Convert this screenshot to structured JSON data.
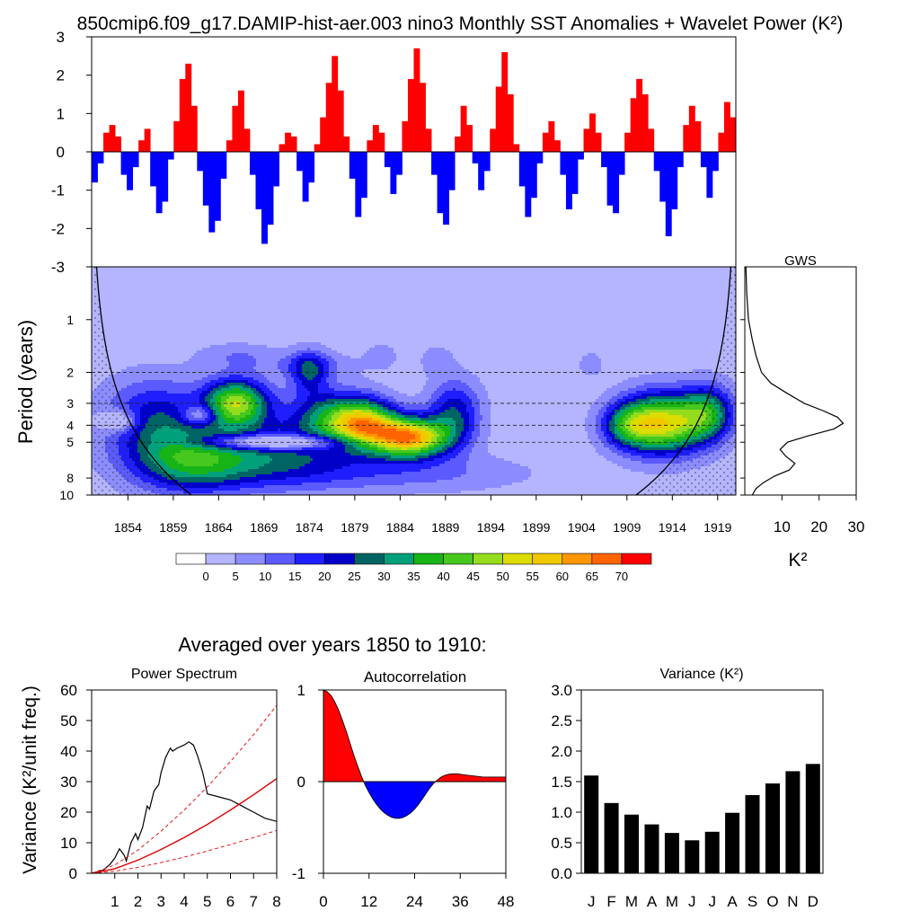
{
  "title": "850cmip6.f09_g17.DAMIP-hist-aer.003 nino3 Monthly SST Anomalies + Wavelet Power (K²)",
  "subtitle": "Averaged over years 1850 to 1910:",
  "colors": {
    "positive": "#ff0000",
    "negative": "#0000ff",
    "contour_levels": [
      "#ffffff",
      "#b4b4ff",
      "#8c8cff",
      "#5a5aff",
      "#1e1eff",
      "#0000c8",
      "#006464",
      "#00a07a",
      "#17b417",
      "#46c81e",
      "#96dc1e",
      "#dcdc00",
      "#f0c800",
      "#ff9600",
      "#ff6400",
      "#ff0000"
    ]
  },
  "chart_data": [
    {
      "id": "sst-anomalies",
      "type": "bar",
      "ylim": [
        -3,
        3
      ],
      "yticks": [
        "3",
        "2",
        "1",
        "0",
        "-1",
        "-2",
        "-3"
      ],
      "x_range": [
        1850,
        1921
      ],
      "values_note_free": true,
      "series": [
        {
          "values": [
            -0.8,
            -0.3,
            0.5,
            0.7,
            0.4,
            -0.6,
            -1.0,
            -0.4,
            0.3,
            0.6,
            -0.9,
            -1.6,
            -1.3,
            -0.2,
            0.8,
            1.9,
            2.3,
            1.2,
            -0.5,
            -1.4,
            -2.1,
            -1.8,
            -0.7,
            0.3,
            1.2,
            1.6,
            0.6,
            -0.6,
            -1.5,
            -2.4,
            -1.9,
            -0.9,
            0.2,
            0.5,
            0.4,
            -0.5,
            -1.3,
            -0.8,
            0.2,
            0.9,
            1.8,
            2.5,
            1.6,
            0.4,
            -0.7,
            -1.7,
            -1.2,
            0.3,
            0.7,
            0.5,
            -0.4,
            -1.1,
            -0.6,
            0.8,
            1.9,
            2.7,
            1.8,
            0.6,
            -0.6,
            -1.6,
            -1.9,
            -1.0,
            0.4,
            1.2,
            0.7,
            -0.3,
            -1.0,
            -0.5,
            0.6,
            1.7,
            2.6,
            1.5,
            0.2,
            -0.9,
            -1.7,
            -1.2,
            -0.3,
            0.5,
            0.8,
            0.3,
            -0.6,
            -1.5,
            -1.1,
            -0.2,
            0.6,
            1.0,
            0.5,
            -0.4,
            -1.4,
            -1.6,
            -0.6,
            0.5,
            1.4,
            1.9,
            1.5,
            0.6,
            -0.5,
            -1.3,
            -2.2,
            -1.5,
            -0.4,
            0.7,
            1.2,
            0.8,
            -0.4,
            -1.2,
            -0.5,
            0.5,
            1.3,
            0.9
          ]
        }
      ]
    },
    {
      "id": "wavelet-power",
      "type": "heatmap",
      "ylabel": "Period (years)",
      "x_range": [
        1850,
        1921
      ],
      "x_ticks": [
        1854,
        1859,
        1864,
        1869,
        1874,
        1879,
        1884,
        1889,
        1894,
        1899,
        1904,
        1909,
        1914,
        1919
      ],
      "y_range_log": [
        0.5,
        10
      ],
      "y_ticks": [
        1,
        2,
        3,
        4,
        5,
        8,
        10
      ],
      "levels": [
        0,
        5,
        10,
        15,
        20,
        25,
        30,
        35,
        40,
        45,
        50,
        55,
        60,
        65,
        70
      ],
      "dashed_periods": [
        2,
        3,
        4,
        5
      ],
      "blobs": [
        {
          "t": 1857,
          "p": 3.8,
          "st": 4.0,
          "sp": 0.38,
          "a": 22
        },
        {
          "t": 1861,
          "p": 6.5,
          "st": 4.5,
          "sp": 0.28,
          "a": 28
        },
        {
          "t": 1866,
          "p": 3.0,
          "st": 2.5,
          "sp": 0.22,
          "a": 45
        },
        {
          "t": 1870,
          "p": 5.8,
          "st": 6.0,
          "sp": 0.3,
          "a": 22
        },
        {
          "t": 1874,
          "p": 2.0,
          "st": 1.5,
          "sp": 0.2,
          "a": 20
        },
        {
          "t": 1876,
          "p": 3.6,
          "st": 3.0,
          "sp": 0.25,
          "a": 24
        },
        {
          "t": 1880,
          "p": 3.9,
          "st": 2.5,
          "sp": 0.22,
          "a": 45
        },
        {
          "t": 1885,
          "p": 4.7,
          "st": 3.0,
          "sp": 0.18,
          "a": 60
        },
        {
          "t": 1890,
          "p": 3.4,
          "st": 2.0,
          "sp": 0.3,
          "a": 22
        },
        {
          "t": 1883,
          "p": 7.5,
          "st": 10.0,
          "sp": 0.18,
          "a": 10
        },
        {
          "t": 1913,
          "p": 3.9,
          "st": 3.2,
          "sp": 0.28,
          "a": 50
        },
        {
          "t": 1909,
          "p": 4.0,
          "st": 2.0,
          "sp": 0.2,
          "a": 22
        },
        {
          "t": 1918,
          "p": 3.4,
          "st": 2.0,
          "sp": 0.25,
          "a": 28
        },
        {
          "t": 1866,
          "p": 1.6,
          "st": 3.0,
          "sp": 0.12,
          "a": 7
        },
        {
          "t": 1874,
          "p": 1.8,
          "st": 4.0,
          "sp": 0.12,
          "a": 7
        },
        {
          "t": 1882,
          "p": 1.6,
          "st": 1.2,
          "sp": 0.12,
          "a": 6
        },
        {
          "t": 1888,
          "p": 1.7,
          "st": 1.2,
          "sp": 0.12,
          "a": 7
        },
        {
          "t": 1905,
          "p": 1.8,
          "st": 1.0,
          "sp": 0.12,
          "a": 6
        }
      ],
      "holes": [
        {
          "t": 1870,
          "p": 5.0,
          "st": 5.5,
          "sp": 0.07,
          "a": 30
        },
        {
          "t": 1853,
          "p": 3.8,
          "st": 1.5,
          "sp": 0.1,
          "a": 18
        },
        {
          "t": 1862,
          "p": 3.5,
          "st": 1.3,
          "sp": 0.09,
          "a": 18
        }
      ]
    },
    {
      "id": "gws",
      "type": "line",
      "title": "GWS",
      "xlabel": "K²",
      "xlim": [
        0,
        30
      ],
      "xticks": [
        "10",
        "20",
        "30"
      ],
      "period": [
        0.5,
        0.7,
        1,
        1.3,
        1.6,
        2,
        2.3,
        2.6,
        3,
        3.3,
        3.6,
        3.9,
        4.2,
        4.6,
        5,
        5.5,
        6,
        6.6,
        7.2,
        7.8,
        8.5,
        9.2,
        10
      ],
      "power": [
        0.3,
        0.5,
        1.0,
        2.0,
        3.0,
        4.5,
        7.0,
        11.0,
        16.0,
        21.0,
        25.0,
        26.5,
        24.0,
        17.0,
        11.5,
        9.5,
        11.0,
        13.5,
        12.0,
        8.0,
        5.0,
        3.0,
        2.0
      ]
    },
    {
      "id": "colorbar",
      "type": "table",
      "labels": [
        "0",
        "5",
        "10",
        "15",
        "20",
        "25",
        "30",
        "35",
        "40",
        "45",
        "50",
        "55",
        "60",
        "65",
        "70"
      ]
    },
    {
      "id": "power-spectrum",
      "type": "line",
      "title": "Power Spectrum",
      "ylabel": "Variance (K²/unit freq.)",
      "xlim": [
        0,
        8
      ],
      "ylim": [
        0,
        60
      ],
      "xticks": [
        "1",
        "2",
        "3",
        "4",
        "5",
        "6",
        "7",
        "8"
      ],
      "yticks": [
        "0",
        "10",
        "20",
        "30",
        "40",
        "50",
        "60"
      ],
      "series": [
        {
          "x": [
            0,
            0.5,
            0.8,
            1.0,
            1.2,
            1.4,
            1.5,
            1.7,
            1.9,
            2.0,
            2.2,
            2.4,
            2.5,
            2.7,
            2.9,
            3.0,
            3.2,
            3.4,
            3.5,
            3.7,
            4.0,
            4.2,
            4.4,
            4.6,
            4.8,
            5.0,
            5.5,
            6.0,
            6.5,
            7.0,
            7.5,
            8.0
          ],
          "y": [
            0,
            1,
            3,
            5,
            8,
            6,
            4,
            10,
            13,
            11,
            15,
            22,
            21,
            27,
            29,
            33,
            38,
            41,
            40,
            41,
            42,
            43,
            42,
            38,
            33,
            26,
            25,
            24,
            22,
            20,
            18,
            17
          ]
        },
        {
          "x": [
            0,
            1,
            2,
            3,
            4,
            5,
            6,
            7,
            8
          ],
          "y": [
            0,
            1.5,
            4.3,
            7.8,
            11.7,
            16,
            20.7,
            25.7,
            31
          ]
        },
        {
          "x": [
            0,
            1,
            2,
            3,
            4,
            5,
            6,
            7,
            8
          ],
          "y": [
            0,
            2.7,
            7.6,
            13.8,
            20.7,
            28.3,
            36.6,
            45.4,
            55
          ]
        },
        {
          "x": [
            0,
            1,
            2,
            3,
            4,
            5,
            6,
            7,
            8
          ],
          "y": [
            0,
            0.7,
            1.9,
            3.5,
            5.3,
            7.3,
            9.4,
            11.7,
            14
          ]
        }
      ]
    },
    {
      "id": "autocorrelation",
      "type": "area",
      "title": "Autocorrelation",
      "xlim": [
        0,
        48
      ],
      "ylim": [
        -1,
        1
      ],
      "xticks": [
        "0",
        "12",
        "24",
        "36",
        "48"
      ],
      "yticks": [
        "1",
        "0",
        "-1"
      ],
      "x": [
        0,
        1,
        2,
        3,
        4,
        5,
        6,
        7,
        8,
        9,
        10,
        11,
        12,
        13,
        14,
        15,
        16,
        17,
        18,
        19,
        20,
        21,
        22,
        23,
        24,
        25,
        26,
        27,
        28,
        29,
        30,
        31,
        32,
        33,
        34,
        35,
        36,
        37,
        38,
        39,
        40,
        41,
        42,
        43,
        44,
        45,
        46,
        47,
        48
      ],
      "y": [
        1.0,
        0.98,
        0.94,
        0.87,
        0.78,
        0.67,
        0.55,
        0.42,
        0.29,
        0.17,
        0.06,
        -0.04,
        -0.12,
        -0.19,
        -0.25,
        -0.3,
        -0.34,
        -0.37,
        -0.39,
        -0.4,
        -0.4,
        -0.39,
        -0.37,
        -0.34,
        -0.3,
        -0.25,
        -0.19,
        -0.13,
        -0.07,
        -0.02,
        0.02,
        0.05,
        0.07,
        0.08,
        0.085,
        0.085,
        0.08,
        0.075,
        0.07,
        0.065,
        0.06,
        0.055,
        0.05,
        0.05,
        0.05,
        0.05,
        0.05,
        0.05,
        0.05
      ]
    },
    {
      "id": "variance",
      "type": "bar",
      "title": "Variance (K²)",
      "ylim": [
        0,
        3
      ],
      "yticks": [
        "0.0",
        "0.5",
        "1.0",
        "1.5",
        "2.0",
        "2.5",
        "3.0"
      ],
      "categories": [
        "J",
        "F",
        "M",
        "A",
        "M",
        "J",
        "J",
        "A",
        "S",
        "O",
        "N",
        "D"
      ],
      "values": [
        1.6,
        1.15,
        0.96,
        0.8,
        0.66,
        0.54,
        0.68,
        0.99,
        1.28,
        1.47,
        1.67,
        1.79
      ]
    }
  ]
}
